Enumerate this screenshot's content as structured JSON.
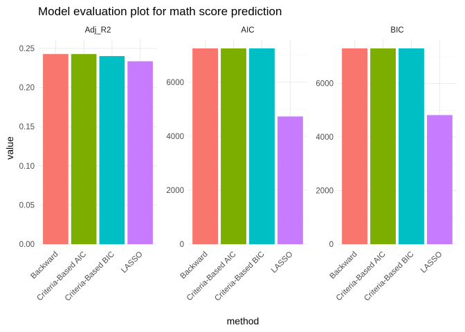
{
  "chart_data": {
    "type": "bar",
    "title": "Model evaluation plot for math score prediction",
    "xlabel": "method",
    "ylabel": "value",
    "categories": [
      "Backward",
      "Criteria-Based AIC",
      "Criteria-Based BIC",
      "LASSO"
    ],
    "colors": [
      "#F8766D",
      "#7CAE00",
      "#00BFC4",
      "#C77CFF"
    ],
    "grid": true,
    "legend": "none",
    "facets": [
      {
        "label": "Adj_R2",
        "values": [
          0.2428,
          0.2428,
          0.2402,
          0.2336
        ],
        "ylim": [
          0,
          0.25
        ],
        "yticks": [
          0.0,
          0.05,
          0.1,
          0.15,
          0.2,
          0.25
        ],
        "ytick_labels": [
          "0.00",
          "0.05",
          "0.10",
          "0.15",
          "0.20",
          "0.25"
        ]
      },
      {
        "label": "AIC",
        "values": [
          7250,
          7250,
          7250,
          4730
        ],
        "ylim": [
          0,
          7250
        ],
        "yticks": [
          0,
          2000,
          4000,
          6000
        ],
        "ytick_labels": [
          "0",
          "2000",
          "4000",
          "6000"
        ]
      },
      {
        "label": "BIC",
        "values": [
          7310,
          7310,
          7310,
          4820
        ],
        "ylim": [
          0,
          7310
        ],
        "yticks": [
          0,
          2000,
          4000,
          6000
        ],
        "ytick_labels": [
          "0",
          "2000",
          "4000",
          "6000"
        ]
      }
    ]
  }
}
